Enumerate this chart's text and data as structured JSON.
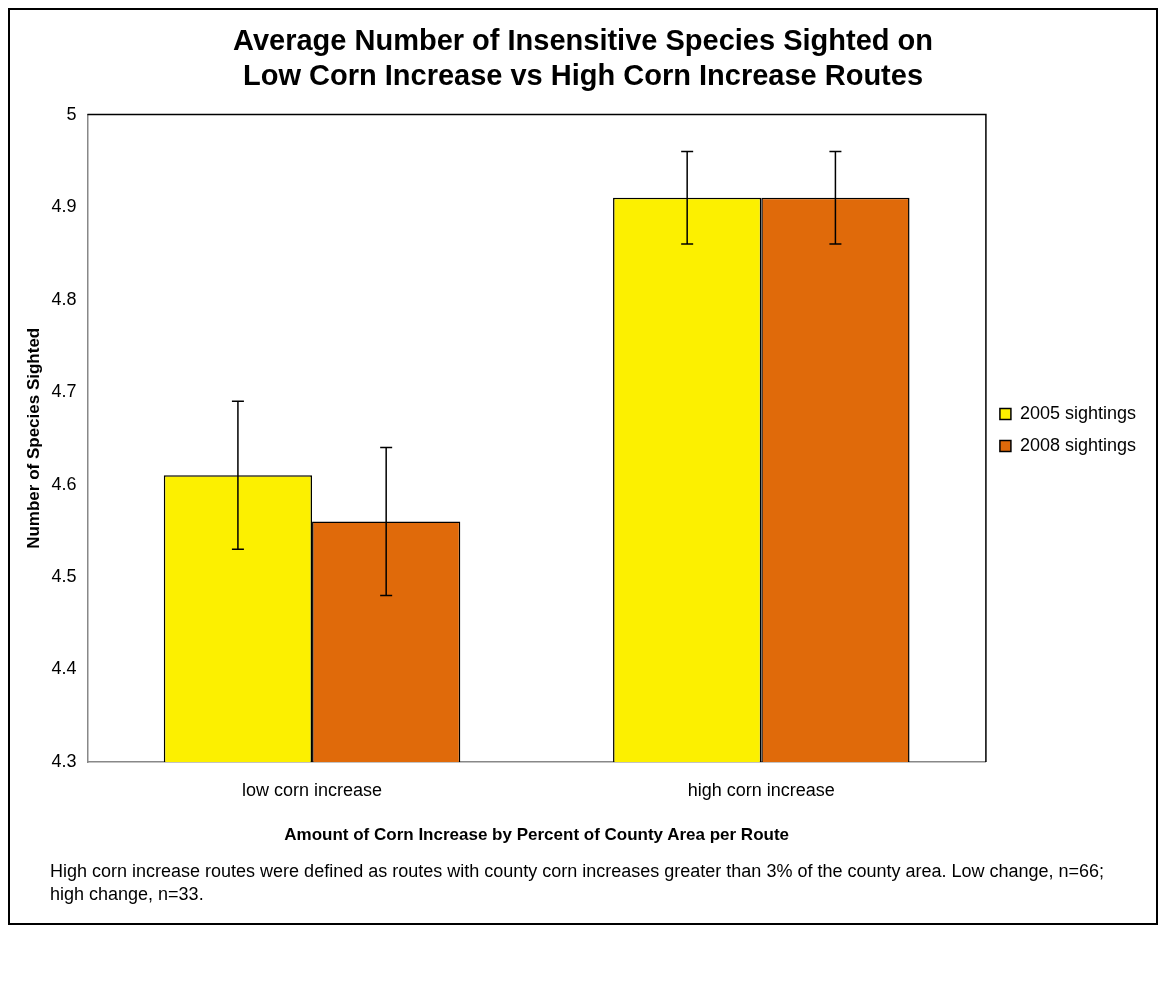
{
  "chart_data": {
    "type": "bar",
    "title": "Average Number of Insensitive Species Sighted on\nLow Corn Increase vs High Corn Increase Routes",
    "xlabel": "Amount of Corn Increase by Percent of County Area per Route",
    "ylabel": "Number of Species Sighted",
    "categories": [
      "low corn increase",
      "high corn increase"
    ],
    "series": [
      {
        "name": "2005 sightings",
        "color": "#fcf000",
        "values": [
          4.61,
          4.91
        ],
        "errors": [
          0.08,
          0.05
        ]
      },
      {
        "name": "2008 sightings",
        "color": "#e06a0a",
        "values": [
          4.56,
          4.91
        ],
        "errors": [
          0.08,
          0.05
        ]
      }
    ],
    "ylim": [
      4.3,
      5
    ],
    "yticks": [
      4.3,
      4.4,
      4.5,
      4.6,
      4.7,
      4.8,
      4.9,
      5
    ],
    "grid": false,
    "legend": "right",
    "annotations": [
      "High corn increase routes were defined as routes with county corn increases greater than 3% of the county area. Low change, n=66; high change, n=33."
    ]
  }
}
